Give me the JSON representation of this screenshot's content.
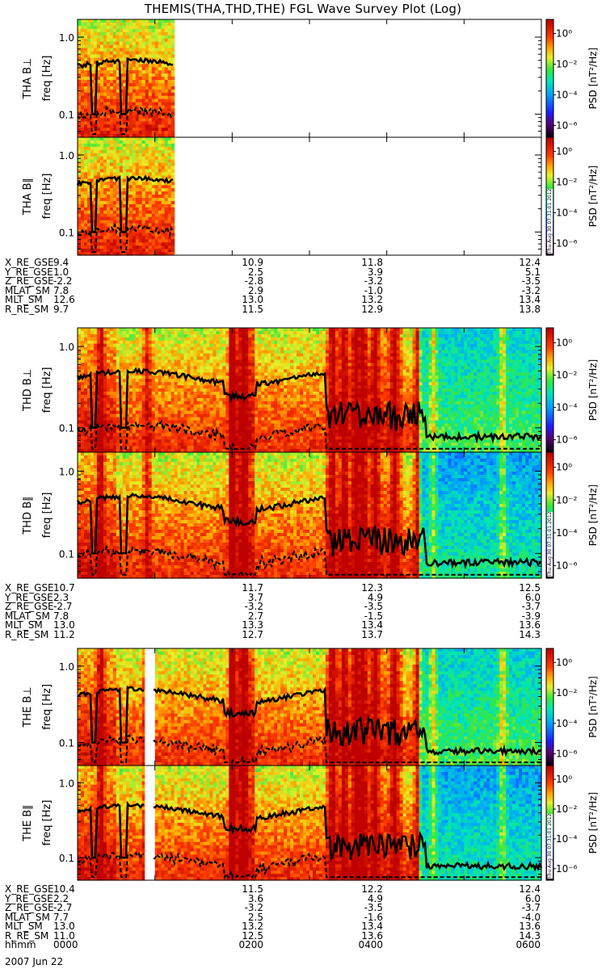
{
  "title": "THEMIS(THA,THD,THE) FGL Wave Survey Plot (Log)",
  "colorbar": {
    "label": "PSD [nT²/Hz]",
    "ticks": [
      "10⁰",
      "10⁻²",
      "10⁻⁴",
      "10⁻⁶"
    ],
    "exponents": [
      0,
      -2,
      -4,
      -6
    ]
  },
  "stamp": "Thu Aug 30 07:31:01 2012",
  "chart_data": [
    {
      "type": "heatmap",
      "probe": "THA",
      "panels": [
        {
          "ylabel": "THA B⊥",
          "unit": "freq [Hz]",
          "yticks": [
            "1.0",
            "0.1"
          ],
          "ylog": true,
          "ylim": [
            0.05,
            1.7
          ],
          "data_xrange": [
            0,
            1.25
          ]
        },
        {
          "ylabel": "THA B∥",
          "unit": "freq [Hz]",
          "yticks": [
            "1.0",
            "0.1"
          ],
          "ylog": true,
          "ylim": [
            0.05,
            1.7
          ],
          "data_xrange": [
            0,
            1.25
          ]
        }
      ],
      "xlim": [
        0,
        6
      ],
      "ephemeris": {
        "X_RE_GSE": [
          "9.4",
          "10.9",
          "11.8",
          "12.4"
        ],
        "Y_RE_GSE": [
          "1.0",
          "2.5",
          "3.9",
          "5.1"
        ],
        "Z_RE_GSE": [
          "-2.2",
          "-2.8",
          "-3.2",
          "-3.5"
        ],
        "MLAT_SM": [
          "7.8",
          "2.9",
          "-1.0",
          "-3.2"
        ],
        "MLT_SM": [
          "12.6",
          "13.0",
          "13.2",
          "13.4"
        ],
        "R_RE_SM": [
          "9.7",
          "11.5",
          "12.9",
          "13.8"
        ]
      },
      "ephem_rows": [
        "X_RE_GSE",
        "Y_RE_GSE",
        "Z_RE_GSE",
        "MLAT_SM",
        "MLT_SM",
        "R_RE_SM"
      ]
    },
    {
      "type": "heatmap",
      "probe": "THD",
      "panels": [
        {
          "ylabel": "THD B⊥",
          "unit": "freq [Hz]",
          "yticks": [
            "1.0",
            "0.1"
          ],
          "ylog": true,
          "ylim": [
            0.05,
            1.7
          ],
          "data_xrange": [
            0,
            6
          ]
        },
        {
          "ylabel": "THD B∥",
          "unit": "freq [Hz]",
          "yticks": [
            "1.0",
            "0.1"
          ],
          "ylog": true,
          "ylim": [
            0.05,
            1.7
          ],
          "data_xrange": [
            0,
            6
          ]
        }
      ],
      "xlim": [
        0,
        6
      ],
      "ephemeris": {
        "X_RE_GSE": [
          "10.7",
          "11.7",
          "12.3",
          "12.5"
        ],
        "Y_RE_GSE": [
          "2.3",
          "3.7",
          "4.9",
          "6.0"
        ],
        "Z_RE_GSE": [
          "-2.7",
          "-3.2",
          "-3.5",
          "-3.7"
        ],
        "MLAT_SM": [
          "7.8",
          "2.7",
          "-1.5",
          "-3.9"
        ],
        "MLT_SM": [
          "13.0",
          "13.3",
          "13.4",
          "13.6"
        ],
        "R_RE_SM": [
          "11.2",
          "12.7",
          "13.7",
          "14.3"
        ]
      },
      "ephem_rows": [
        "X_RE_GSE",
        "Y_RE_GSE",
        "Z_RE_GSE",
        "MLAT_SM",
        "MLT_SM",
        "R_RE_SM"
      ]
    },
    {
      "type": "heatmap",
      "probe": "THE",
      "panels": [
        {
          "ylabel": "THE B⊥",
          "unit": "freq [Hz]",
          "yticks": [
            "1.0",
            "0.1"
          ],
          "ylog": true,
          "ylim": [
            0.05,
            1.7
          ],
          "data_xrange": [
            0,
            6
          ]
        },
        {
          "ylabel": "THE B∥",
          "unit": "freq [Hz]",
          "yticks": [
            "1.0",
            "0.1"
          ],
          "ylog": true,
          "ylim": [
            0.05,
            1.7
          ],
          "data_xrange": [
            0,
            6
          ]
        }
      ],
      "xlim": [
        0,
        6
      ],
      "ephemeris": {
        "X_RE_GSE": [
          "10.4",
          "11.5",
          "12.2",
          "12.4"
        ],
        "Y_RE_GSE": [
          "2.2",
          "3.6",
          "4.9",
          "6.0"
        ],
        "Z_RE_GSE": [
          "-2.7",
          "-3.2",
          "-3.5",
          "-3.7"
        ],
        "MLAT_SM": [
          "7.7",
          "2.5",
          "-1.6",
          "-4.0"
        ],
        "MLT_SM": [
          "13.0",
          "13.2",
          "13.4",
          "13.6"
        ],
        "R_RE_SM": [
          "11.0",
          "12.5",
          "13.6",
          "14.3"
        ],
        "hhmm": [
          "0000",
          "0200",
          "0400",
          "0600"
        ]
      },
      "ephem_rows": [
        "X_RE_GSE",
        "Y_RE_GSE",
        "Z_RE_GSE",
        "MLAT_SM",
        "MLT_SM",
        "R_RE_SM",
        "hhmm"
      ],
      "date": "2007 Jun 22"
    }
  ]
}
